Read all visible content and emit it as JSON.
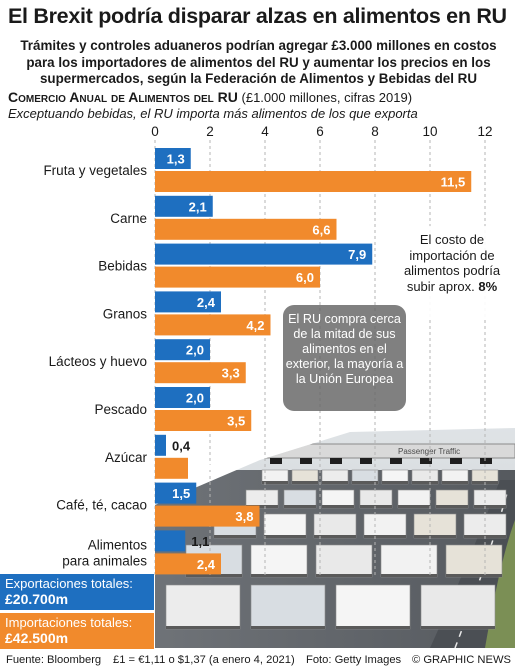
{
  "title": "El Brexit podría disparar alzas en alimentos en RU",
  "subtitle": "Trámites y controles aduaneros podrían agregar £3.000 millones en costos para los importadores de alimentos del RU y aumentar los precios en los supermercados, según la Federación de Alimentos y Bebidas del RU",
  "section": {
    "heading": "Comercio Anual de Alimentos del RU",
    "units": "(£1.000 millones, cifras 2019)",
    "note": "Exceptuando bebidas, el RU importa más alimentos de los que exporta"
  },
  "chart_data": {
    "type": "bar",
    "orientation": "horizontal",
    "categories": [
      "Fruta y vegetales",
      "Carne",
      "Bebidas",
      "Granos",
      "Lácteos y huevo",
      "Pescado",
      "Azúcar",
      "Café, té, cacao",
      "Alimentos para animales"
    ],
    "category_labels": [
      [
        "Fruta y vegetales"
      ],
      [
        "Carne"
      ],
      [
        "Bebidas"
      ],
      [
        "Granos"
      ],
      [
        "Lácteos y huevo"
      ],
      [
        "Pescado"
      ],
      [
        "Azúcar"
      ],
      [
        "Café, té, cacao"
      ],
      [
        "Alimentos",
        "para animales"
      ]
    ],
    "series": [
      {
        "name": "Exportaciones",
        "color": "#1e6fc0",
        "values": [
          1.3,
          2.1,
          7.9,
          2.4,
          2.0,
          2.0,
          0.4,
          1.5,
          1.1
        ],
        "labels": [
          "1,3",
          "2,1",
          "7,9",
          "2,4",
          "2,0",
          "2,0",
          "0,4",
          "1,5",
          "1,1"
        ]
      },
      {
        "name": "Importaciones",
        "color": "#f18a2c",
        "values": [
          11.5,
          6.6,
          6.0,
          4.2,
          3.3,
          3.5,
          1.2,
          3.8,
          2.4
        ],
        "labels": [
          "11,5",
          "6,6",
          "6,0",
          "4,2",
          "3,3",
          "3,5",
          "1,2",
          "3,8",
          "2,4"
        ]
      }
    ],
    "x_ticks": [
      0,
      2,
      4,
      6,
      8,
      10,
      12
    ],
    "x_tick_labels": [
      "0",
      "2",
      "4",
      "6",
      "8",
      "10",
      "12"
    ],
    "xlim": [
      0,
      12
    ],
    "grid": "vertical dashed"
  },
  "callouts": {
    "cost_text": "El costo de importación de alimentos podría subir aprox.",
    "cost_value": "8%",
    "eu_text": "El RU compra cerca de la mitad de sus alimentos en el exterior, la mayoría a la Unión Europea"
  },
  "totals": {
    "exports_label": "Exportaciones totales:",
    "exports_value": "£20.700m",
    "imports_label": "Importaciones totales:",
    "imports_value": "£42.500m"
  },
  "footer": {
    "source": "Fuente: Bloomberg",
    "rate": "£1 = €1,11 o $1,37 (a enero 4, 2021)",
    "photo": "Foto: Getty Images",
    "credit": "© GRAPHIC NEWS"
  },
  "photo_sign_text": "Passenger Traffic",
  "colors": {
    "exports": "#1e6fc0",
    "imports": "#f18a2c",
    "export_label_text": "#ffffff",
    "import_label_text": "#ffffff"
  }
}
